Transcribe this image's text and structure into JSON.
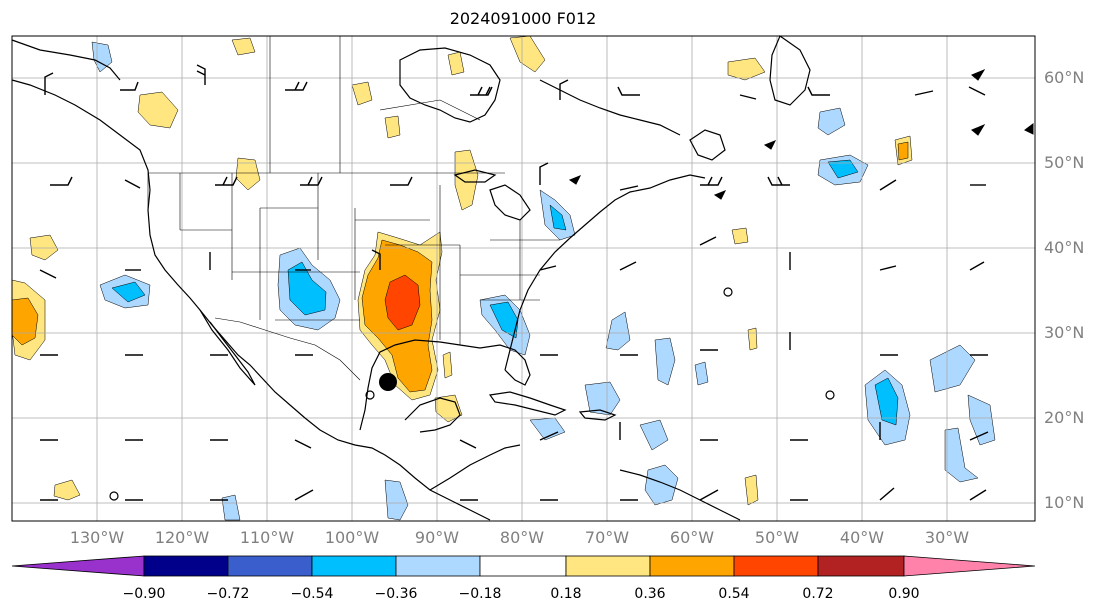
{
  "title": "2024091000 F012",
  "lat_labels": [
    "60°N",
    "50°N",
    "40°N",
    "30°N",
    "20°N",
    "10°N"
  ],
  "lon_labels": [
    "130°W",
    "120°W",
    "110°W",
    "100°W",
    "90°W",
    "80°W",
    "70°W",
    "60°W",
    "50°W",
    "40°W",
    "30°W"
  ],
  "colorbar": {
    "ticks": [
      "−0.90",
      "−0.72",
      "−0.54",
      "−0.36",
      "−0.18",
      "0.18",
      "0.36",
      "0.54",
      "0.72",
      "0.90"
    ],
    "colors": [
      "#9932cc",
      "#00008b",
      "#3a5fcd",
      "#00bfff",
      "#add8ff",
      "#ffffff",
      "#ffe680",
      "#ffa500",
      "#ff4500",
      "#b22222",
      "#ff82ab"
    ]
  },
  "shading_colors": {
    "light_blue": "#add8ff",
    "blue": "#00bfff",
    "light_yellow": "#ffe680",
    "orange": "#ffa500",
    "red": "#ff4500"
  }
}
